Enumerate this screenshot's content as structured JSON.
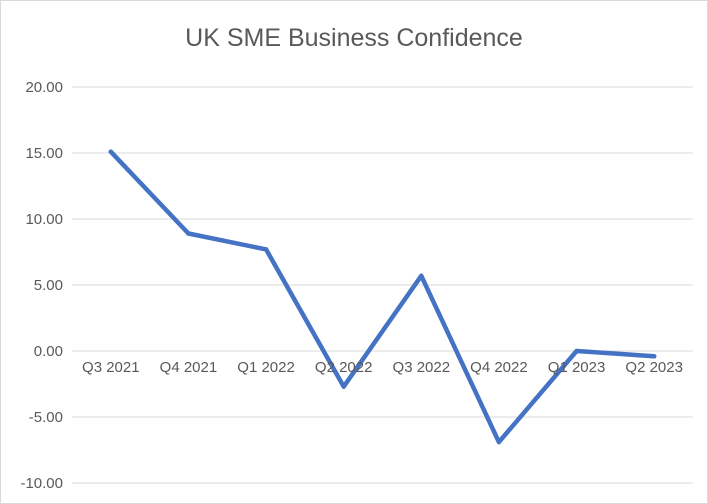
{
  "chart_data": {
    "type": "line",
    "title": "UK SME Business Confidence",
    "xlabel": "",
    "ylabel": "",
    "categories": [
      "Q3 2021",
      "Q4 2021",
      "Q1 2022",
      "Q2 2022",
      "Q3 2022",
      "Q4 2022",
      "Q1 2023",
      "Q2 2023"
    ],
    "series": [
      {
        "values": [
          15.1,
          8.9,
          7.7,
          -2.7,
          5.7,
          -6.9,
          0.0,
          -0.4
        ]
      }
    ],
    "yticks": [
      "20.00",
      "15.00",
      "10.00",
      "5.00",
      "0.00",
      "-5.00",
      "-10.00"
    ],
    "ylim": [
      -10,
      20
    ],
    "grid": true,
    "legend": "none",
    "colors": {
      "line": "#4472c4",
      "grid": "#d9d9d9",
      "text": "#595959"
    }
  }
}
